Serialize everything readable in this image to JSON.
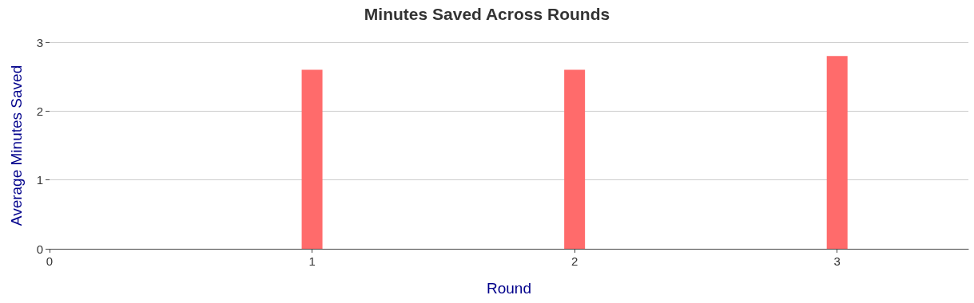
{
  "chart_data": {
    "type": "bar",
    "title": "Minutes Saved Across Rounds",
    "xlabel": "Round",
    "ylabel": "Average Minutes Saved",
    "x": [
      1,
      2,
      3
    ],
    "values": [
      2.6,
      2.6,
      2.8
    ],
    "color": "#ff6b6b",
    "xlim": [
      0,
      3.5
    ],
    "xticks": [
      0,
      1,
      2,
      3
    ],
    "ylim": [
      0,
      3
    ],
    "yticks": [
      0,
      1,
      2,
      3
    ],
    "grid": "y"
  }
}
